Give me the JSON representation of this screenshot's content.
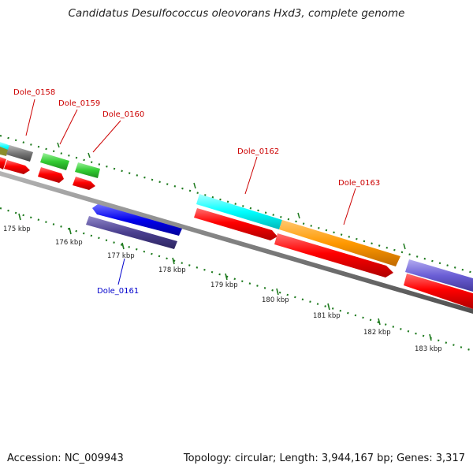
{
  "title": "Candidatus Desulfococcus oleovorans Hxd3, complete genome",
  "footer": {
    "accession": "Accession: NC_009943",
    "summary": "Topology: circular; Length: 3,944,167 bp; Genes: 3,317"
  },
  "ticks": [
    {
      "label": "175 kbp"
    },
    {
      "label": "176 kbp"
    },
    {
      "label": "177 kbp"
    },
    {
      "label": "178 kbp"
    },
    {
      "label": "179 kbp"
    },
    {
      "label": "180 kbp"
    },
    {
      "label": "181 kbp"
    },
    {
      "label": "182 kbp"
    },
    {
      "label": "183 kbp"
    }
  ],
  "gene_labels": [
    {
      "name": "Dole_0158",
      "color": "#cc0000"
    },
    {
      "name": "Dole_0159",
      "color": "#cc0000"
    },
    {
      "name": "Dole_0160",
      "color": "#cc0000"
    },
    {
      "name": "Dole_0161",
      "color": "#0000cc"
    },
    {
      "name": "Dole_0162",
      "color": "#cc0000"
    },
    {
      "name": "Dole_0163",
      "color": "#cc0000"
    }
  ],
  "colors": {
    "cds": "#ff0000",
    "backbone": "#808080",
    "tick": "#1e7a1e",
    "dots": "#1e7a1e",
    "cyan": "#00ffff",
    "orange": "#ff9900",
    "green": "#33cc33",
    "gray": "#777777",
    "blue": "#0000ee",
    "navy": "#4a3f8f",
    "purple": "#6b5fd6"
  }
}
